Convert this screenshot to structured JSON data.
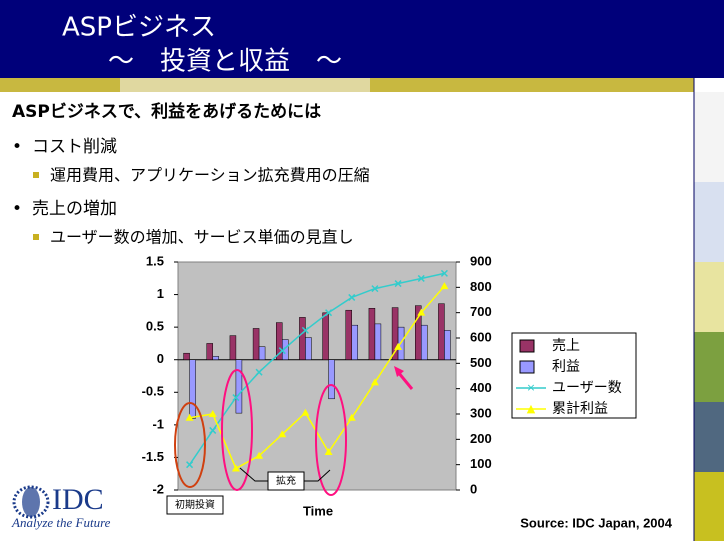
{
  "slide": {
    "title": [
      "ASPビジネス",
      "～　投資と収益　～"
    ],
    "heading": "ASPビジネスで、利益をあげるためには",
    "bullets": [
      {
        "text": "コスト削減",
        "sub": "運用費用、アプリケーション拡充費用の圧縮"
      },
      {
        "text": "売上の増加",
        "sub": "ユーザー数の増加、サービス単価の見直し"
      }
    ],
    "logo": "IDC",
    "tagline": "Analyze the Future",
    "source": "Source: IDC Japan, 2004"
  },
  "chart_data": {
    "type": "bar",
    "xlabel": "Time",
    "categories": [
      null,
      null,
      null,
      null,
      null,
      null,
      null,
      null,
      null,
      null,
      null,
      null
    ],
    "ylim": [
      -2,
      1.5
    ],
    "yticks": [
      {
        "value": 1.5,
        "label": "1.5"
      },
      1,
      {
        "value": 0.5,
        "label": "0.5"
      },
      0,
      {
        "value": -0.5,
        "label": "-0.5"
      },
      -1,
      {
        "value": -1.5,
        "label": "-1.5"
      },
      -2
    ],
    "y2lim": [
      0,
      900
    ],
    "y2ticks": [
      0,
      100,
      200,
      300,
      400,
      500,
      600,
      700,
      800,
      900
    ],
    "legend": "right",
    "annotations": [
      "初期投資",
      "拡充"
    ],
    "series": [
      {
        "name": "売上",
        "type": "bar",
        "color": "#993366",
        "values": [
          0.1,
          0.25,
          0.37,
          0.48,
          0.57,
          0.65,
          0.72,
          0.76,
          0.79,
          0.8,
          0.83,
          0.86
        ]
      },
      {
        "name": "利益",
        "type": "bar",
        "color": "#9999ff",
        "values": [
          -0.9,
          0.05,
          -0.82,
          0.2,
          0.31,
          0.34,
          -0.6,
          0.53,
          0.55,
          0.5,
          0.53,
          0.45
        ]
      },
      {
        "name": "ユーザー数",
        "type": "line",
        "axis": "y2",
        "color": "#33cccc",
        "values": [
          100,
          235,
          365,
          465,
          550,
          630,
          700,
          760,
          795,
          815,
          835,
          855
        ]
      },
      {
        "name": "累計利益",
        "type": "line",
        "axis": "y2",
        "color": "#ffff00",
        "values": [
          285,
          300,
          85,
          135,
          220,
          305,
          150,
          285,
          425,
          565,
          700,
          805
        ]
      }
    ]
  }
}
